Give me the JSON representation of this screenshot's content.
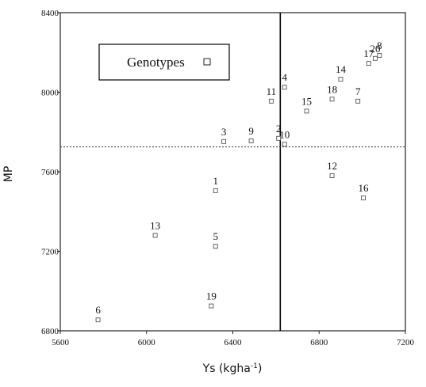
{
  "chart_data": {
    "type": "scatter",
    "xlabel": "Ys (kgha",
    "xlabel_sup": "-1",
    "xlabel_close": ")",
    "ylabel": "MP",
    "xlim": [
      5600,
      7200
    ],
    "ylim": [
      6800,
      8400
    ],
    "x_ticks": [
      5600,
      6000,
      6400,
      6800,
      7200
    ],
    "y_ticks": [
      6800,
      7200,
      7600,
      8000,
      8400
    ],
    "x_tick_labels": [
      "5600",
      "6000",
      "6400",
      "6800",
      "7200"
    ],
    "y_tick_labels": [
      "6800",
      "7200",
      "7600",
      "8000",
      "8400"
    ],
    "mean_x": 6620,
    "mean_y": 7725,
    "legend": {
      "label": "Genotypes",
      "position": "top-left"
    },
    "points": [
      {
        "label": "1",
        "x": 6320,
        "y": 7505
      },
      {
        "label": "2",
        "x": 6612,
        "y": 7768
      },
      {
        "label": "3",
        "x": 6358,
        "y": 7752
      },
      {
        "label": "4",
        "x": 6640,
        "y": 8025
      },
      {
        "label": "5",
        "x": 6320,
        "y": 7225
      },
      {
        "label": "6",
        "x": 5775,
        "y": 6855
      },
      {
        "label": "7",
        "x": 6980,
        "y": 7955
      },
      {
        "label": "8",
        "x": 7080,
        "y": 8185
      },
      {
        "label": "9",
        "x": 6485,
        "y": 7755
      },
      {
        "label": "10",
        "x": 6640,
        "y": 7738
      },
      {
        "label": "11",
        "x": 6578,
        "y": 7955
      },
      {
        "label": "12",
        "x": 6860,
        "y": 7580
      },
      {
        "label": "13",
        "x": 6040,
        "y": 7280
      },
      {
        "label": "14",
        "x": 6900,
        "y": 8065
      },
      {
        "label": "15",
        "x": 6742,
        "y": 7905
      },
      {
        "label": "16",
        "x": 7005,
        "y": 7468
      },
      {
        "label": "17",
        "x": 7030,
        "y": 8145
      },
      {
        "label": "18",
        "x": 6860,
        "y": 7965
      },
      {
        "label": "19",
        "x": 6300,
        "y": 6925
      },
      {
        "label": "20",
        "x": 7060,
        "y": 8170
      }
    ],
    "legend_box_color": "#000000",
    "mark_color": "#555555"
  }
}
